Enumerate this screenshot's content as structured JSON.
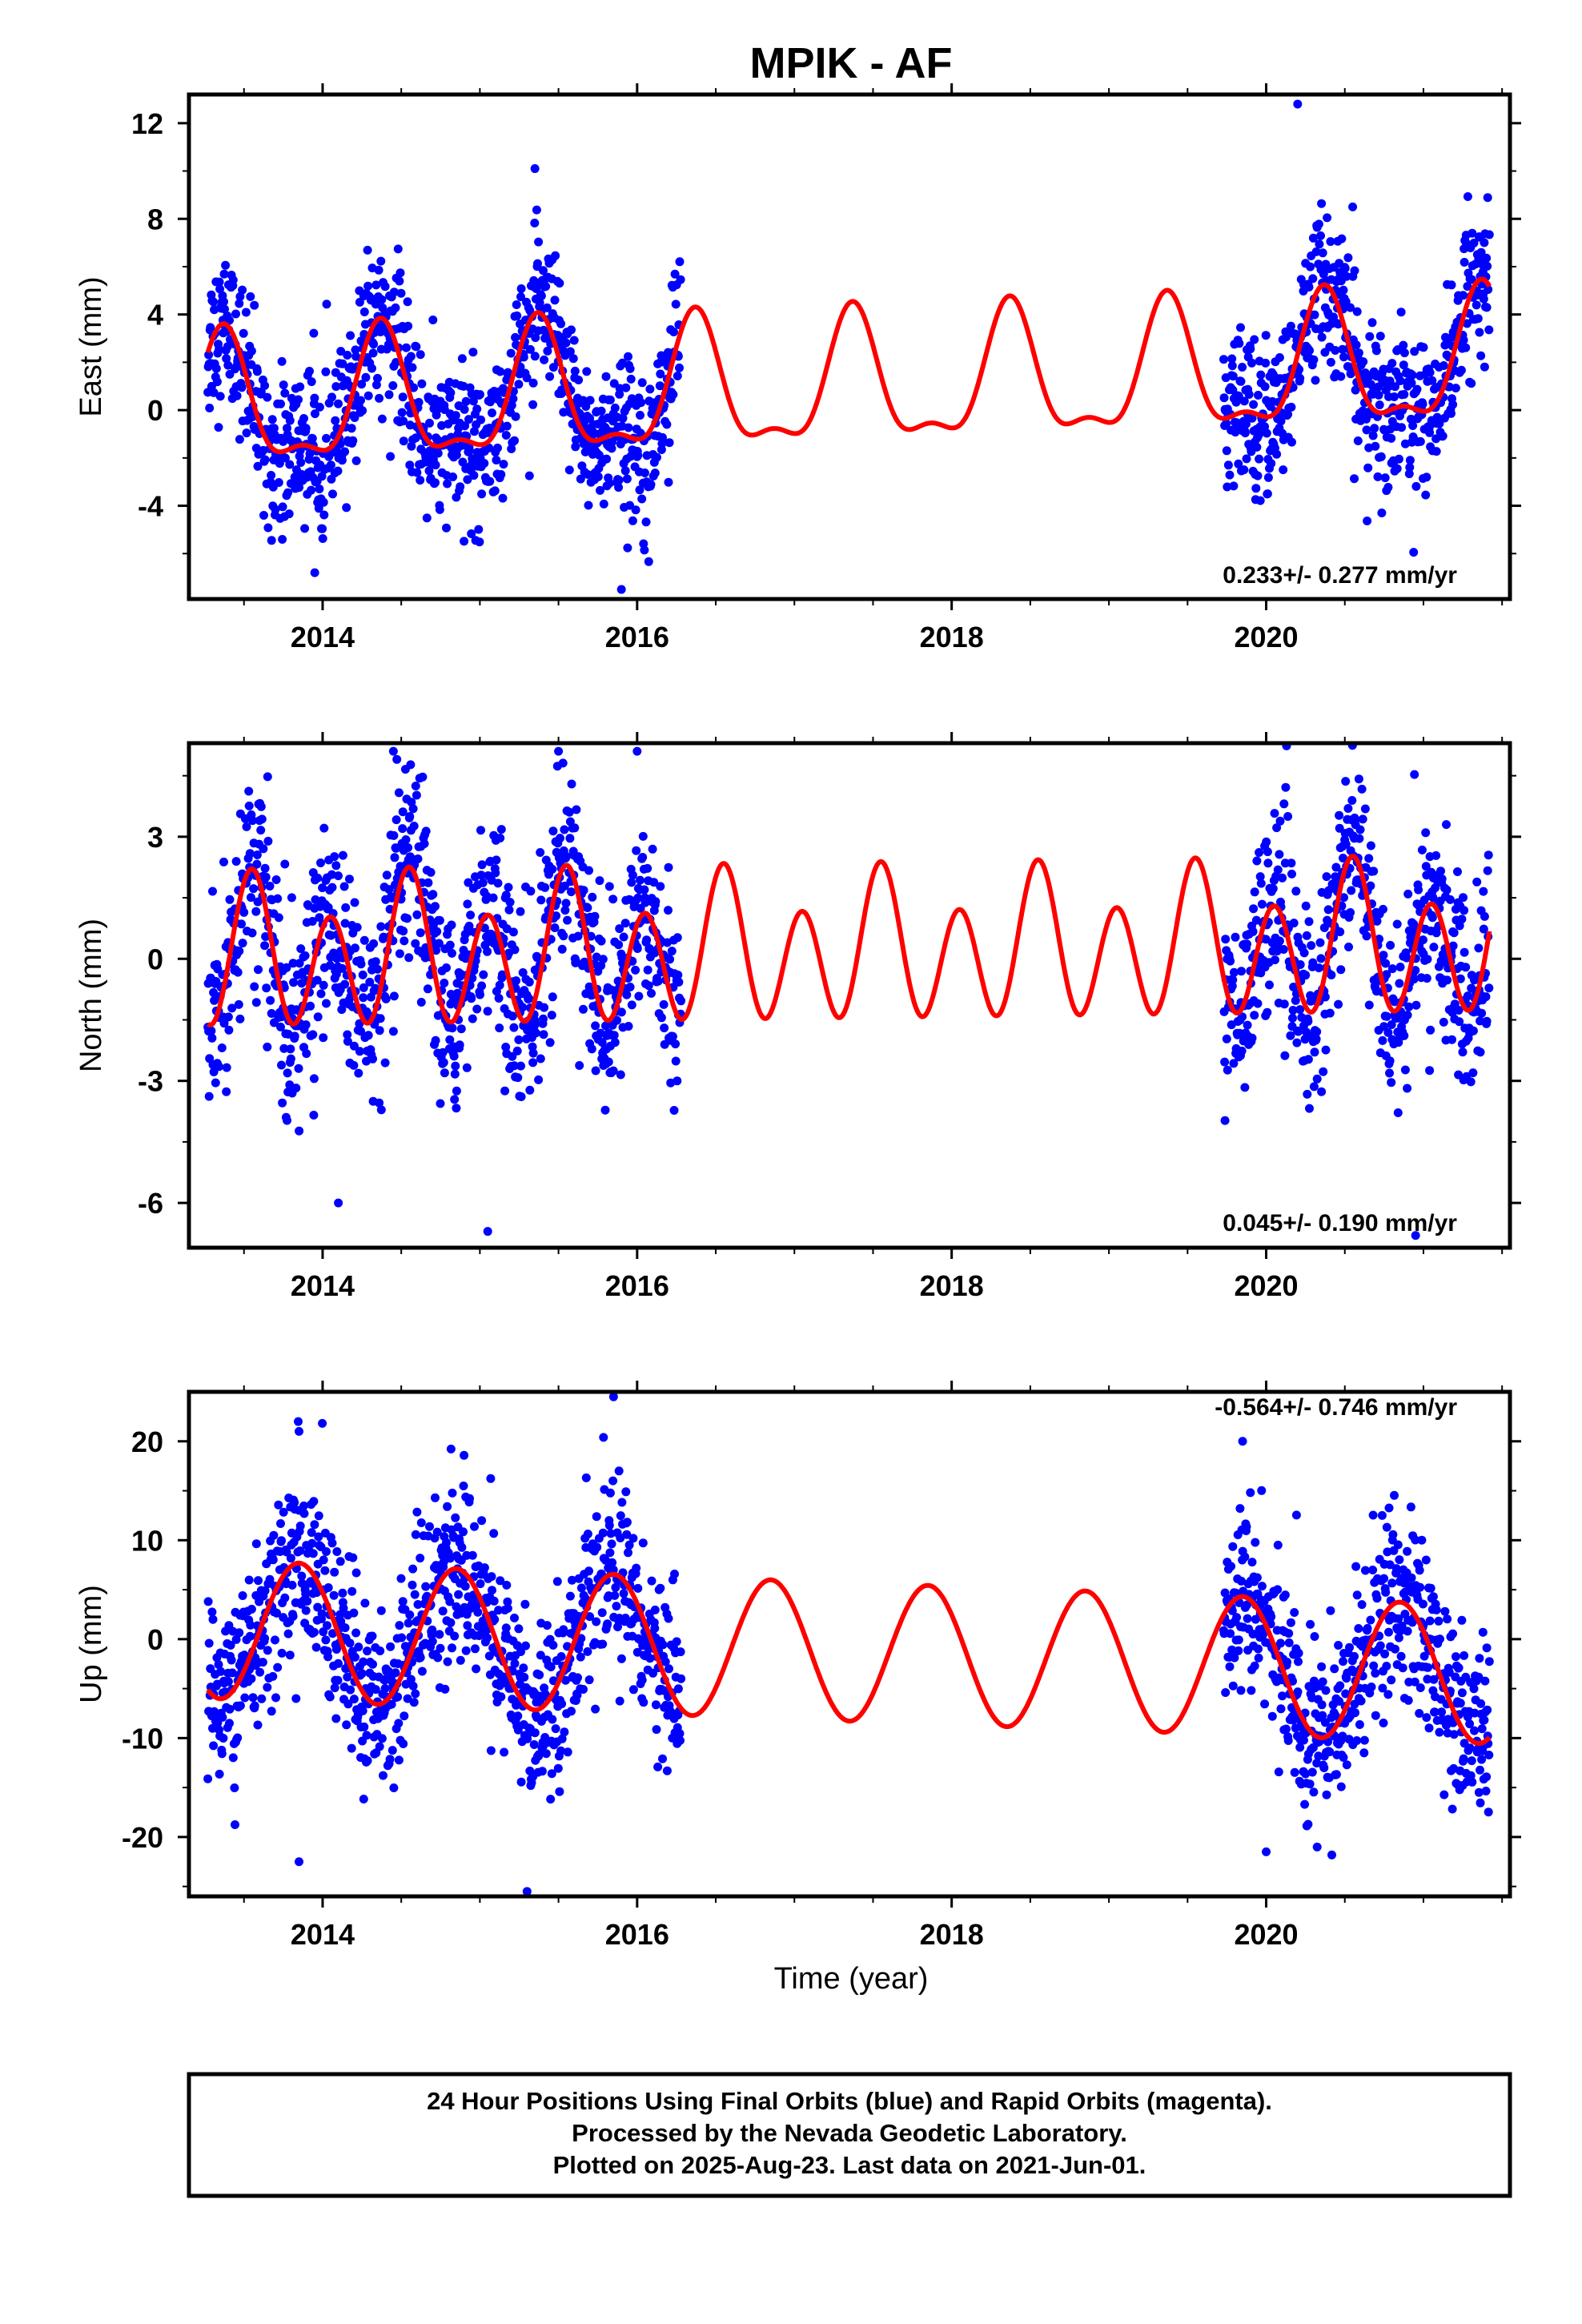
{
  "chart_data": [
    {
      "type": "scatter",
      "title": "MPIK - AF",
      "xlabel": "",
      "ylabel": "East (mm)",
      "xlim": [
        2013.15,
        2021.55
      ],
      "ylim": [
        -7.9,
        13.2
      ],
      "xticks": [
        "2014",
        "2016",
        "2018",
        "2020"
      ],
      "yticks": [
        "12",
        "8",
        "4",
        "0",
        "-4"
      ],
      "rate_text": "0.233+/- 0.277 mm/yr",
      "series": [
        {
          "color": "#0000ff",
          "points_mode": "daily",
          "segments": [
            [
              2013.27,
              2016.28
            ],
            [
              2019.73,
              2021.42
            ]
          ],
          "scatter_sd": 1.6,
          "model": {
            "offset": 0.0,
            "trend": 0.233,
            "t0": 2013.3,
            "annual": {
              "amp": 2.6,
              "peak": 2013.37
            },
            "semiannual": {
              "amp": 1.0,
              "peak": 2013.37
            }
          },
          "extreme_points": [
            [
              2015.35,
              10.1
            ],
            [
              2020.2,
              12.8
            ],
            [
              2015.9,
              -7.5
            ],
            [
              2013.95,
              -6.8
            ],
            [
              2020.55,
              8.5
            ]
          ]
        },
        {
          "color": "#ff0000",
          "model_curve": true,
          "x_range": [
            2013.27,
            2021.42
          ],
          "model": {
            "offset": 0.0,
            "trend": 0.233,
            "t0": 2013.3,
            "annual": {
              "amp": 2.6,
              "peak": 2013.37
            },
            "semiannual": {
              "amp": 1.0,
              "peak": 2013.37
            }
          }
        }
      ]
    },
    {
      "type": "scatter",
      "xlabel": "",
      "ylabel": "North (mm)",
      "xlim": [
        2013.15,
        2021.55
      ],
      "ylim": [
        -7.1,
        5.3
      ],
      "xticks": [
        "2014",
        "2016",
        "2018",
        "2020"
      ],
      "yticks": [
        "3",
        "0",
        "-3",
        "-6"
      ],
      "rate_text": "0.045+/- 0.190 mm/yr",
      "series": [
        {
          "color": "#0000ff",
          "points_mode": "daily",
          "segments": [
            [
              2013.27,
              2016.28
            ],
            [
              2019.73,
              2021.42
            ]
          ],
          "scatter_sd": 1.2,
          "model": {
            "offset": 0.0,
            "trend": 0.045,
            "t0": 2013.3,
            "annual": {
              "amp": 0.6,
              "peak": 2013.55
            },
            "semiannual": {
              "amp": 1.6,
              "peak": 2013.55
            }
          },
          "extreme_points": [
            [
              2014.45,
              5.1
            ],
            [
              2015.5,
              5.1
            ],
            [
              2016.0,
              5.1
            ],
            [
              2014.1,
              -6.0
            ],
            [
              2015.05,
              -6.7
            ],
            [
              2020.95,
              -6.8
            ]
          ]
        },
        {
          "color": "#ff0000",
          "model_curve": true,
          "x_range": [
            2013.27,
            2021.42
          ],
          "model": {
            "offset": 0.0,
            "trend": 0.045,
            "t0": 2013.3,
            "annual": {
              "amp": 0.6,
              "peak": 2013.55
            },
            "semiannual": {
              "amp": 1.6,
              "peak": 2013.55
            }
          }
        }
      ]
    },
    {
      "type": "scatter",
      "xlabel": "Time (year)",
      "ylabel": "Up (mm)",
      "xlim": [
        2013.15,
        2021.55
      ],
      "ylim": [
        -26.0,
        25.0
      ],
      "xticks": [
        "2014",
        "2016",
        "2018",
        "2020"
      ],
      "yticks": [
        "20",
        "10",
        "0",
        "-10",
        "-20"
      ],
      "rate_text": "-0.564+/- 0.746 mm/yr",
      "series": [
        {
          "color": "#0000ff",
          "points_mode": "daily",
          "segments": [
            [
              2013.27,
              2016.28
            ],
            [
              2019.73,
              2021.42
            ]
          ],
          "scatter_sd": 4.5,
          "model": {
            "offset": 1.0,
            "trend": -0.564,
            "t0": 2013.3,
            "annual": {
              "amp": 7.0,
              "peak": 2013.85
            },
            "semiannual": {
              "amp": 0.0,
              "peak": 2013.85
            }
          },
          "extreme_points": [
            [
              2015.85,
              24.5
            ],
            [
              2013.85,
              21.0
            ],
            [
              2019.85,
              20.0
            ],
            [
              2013.85,
              -22.5
            ],
            [
              2015.3,
              -25.5
            ],
            [
              2020.0,
              -21.5
            ]
          ]
        },
        {
          "color": "#ff0000",
          "model_curve": true,
          "x_range": [
            2013.27,
            2021.42
          ],
          "model": {
            "offset": 1.0,
            "trend": -0.564,
            "t0": 2013.3,
            "annual": {
              "amp": 7.0,
              "peak": 2013.85
            },
            "semiannual": {
              "amp": 0.0,
              "peak": 2013.85
            }
          }
        }
      ]
    }
  ],
  "footer": {
    "line1": "24 Hour Positions Using Final Orbits (blue) and Rapid Orbits (magenta).",
    "line2": "Processed by the Nevada Geodetic Laboratory.",
    "line3": "Plotted on 2025-Aug-23. Last data on 2021-Jun-01."
  }
}
